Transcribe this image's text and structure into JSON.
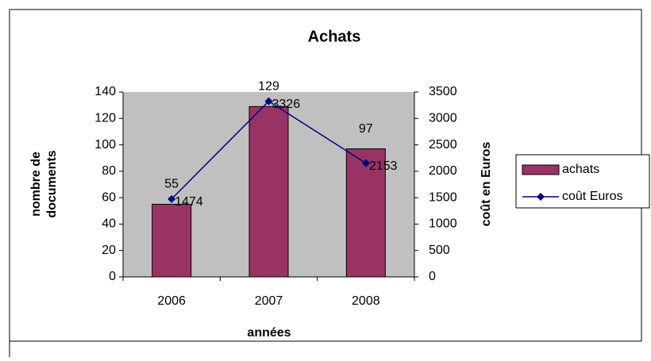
{
  "chart_data": {
    "type": "bar",
    "title": "Achats",
    "xlabel": "années",
    "ylabel": [
      "nombre de",
      "documents"
    ],
    "y2label": "coût en Euros",
    "categories": [
      "2006",
      "2007",
      "2008"
    ],
    "series": [
      {
        "name": "achats",
        "type": "bar",
        "color": "#993366",
        "values": [
          55,
          129,
          97
        ]
      },
      {
        "name": "coût Euros",
        "type": "line",
        "color": "#000080",
        "axis": "y2",
        "values": [
          1474,
          3326,
          2153
        ]
      }
    ],
    "ylim": [
      0,
      140
    ],
    "yticks": [
      0,
      20,
      40,
      60,
      80,
      100,
      120,
      140
    ],
    "y2lim": [
      0,
      3500
    ],
    "y2ticks": [
      0,
      500,
      1000,
      1500,
      2000,
      2500,
      3000,
      3500
    ],
    "grid": false,
    "legend": "right",
    "plot_background": "#c0c0c0"
  }
}
